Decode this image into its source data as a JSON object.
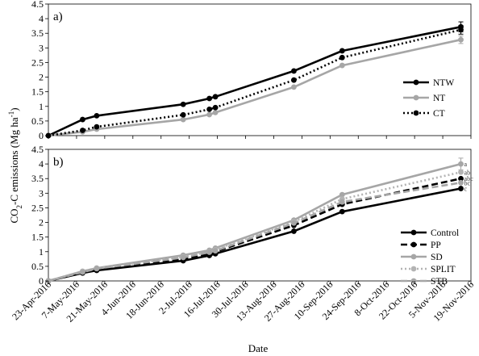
{
  "figure": {
    "ylabel_main": "CO",
    "ylabel_sub": "2",
    "ylabel_rest": "-C emissions (Mg ha",
    "ylabel_sup": "-1",
    "ylabel_close": ")",
    "xlabel": "Date"
  },
  "chart_data": [
    {
      "type": "line",
      "panel_label": "a)",
      "x_tick_labels": [
        "23-Apr-2016",
        "7-May-2016",
        "21-May-2016",
        "4-Jun-2016",
        "18-Jun-2016",
        "2-Jul-2016",
        "16-Jul-2016",
        "30-Jul-2016",
        "13-Aug-2016",
        "27-Aug-2016",
        "10-Sep-2016",
        "24-Sep-2016",
        "8-Oct-2016",
        "22-Oct-2016",
        "5-Nov-2016",
        "19-Nov-2016"
      ],
      "y_ticks": [
        "0",
        "0.5",
        "1",
        "1.5",
        "2",
        "2.5",
        "3",
        "3.5",
        "4",
        "4.5"
      ],
      "ylim": [
        0,
        4.5
      ],
      "x_domain": [
        "2016-04-23",
        "2016-11-19"
      ],
      "legend": "right",
      "series": [
        {
          "name": "NTW",
          "color": "#000000",
          "style": "solid",
          "marker": "#000000",
          "x": [
            "2016-04-23",
            "2016-05-10",
            "2016-05-17",
            "2016-06-29",
            "2016-07-12",
            "2016-07-15",
            "2016-08-23",
            "2016-09-16",
            "2016-11-14"
          ],
          "y": [
            0,
            0.55,
            0.68,
            1.07,
            1.27,
            1.33,
            2.21,
            2.9,
            3.72
          ],
          "err": [
            0,
            0,
            0,
            0,
            0,
            0,
            0,
            0,
            0.17
          ]
        },
        {
          "name": "NT",
          "color": "#a6a6a6",
          "style": "solid",
          "marker": "#a6a6a6",
          "x": [
            "2016-04-23",
            "2016-05-10",
            "2016-05-17",
            "2016-06-29",
            "2016-07-12",
            "2016-07-15",
            "2016-08-23",
            "2016-09-16",
            "2016-11-14"
          ],
          "y": [
            0,
            0.13,
            0.22,
            0.55,
            0.72,
            0.79,
            1.66,
            2.4,
            3.28
          ],
          "err": [
            0,
            0,
            0,
            0,
            0,
            0,
            0,
            0,
            0.13
          ]
        },
        {
          "name": "CT",
          "color": "#000000",
          "style": "dotted",
          "marker": "#000000",
          "x": [
            "2016-04-23",
            "2016-05-10",
            "2016-05-17",
            "2016-06-29",
            "2016-07-12",
            "2016-07-15",
            "2016-08-23",
            "2016-09-16",
            "2016-11-14"
          ],
          "y": [
            0,
            0.18,
            0.3,
            0.71,
            0.9,
            0.96,
            1.9,
            2.67,
            3.62
          ],
          "err": [
            0,
            0,
            0,
            0,
            0,
            0,
            0,
            0,
            0.15
          ]
        }
      ]
    },
    {
      "type": "line",
      "panel_label": "b)",
      "x_tick_labels": [
        "23-Apr-2016",
        "7-May-2016",
        "21-May-2016",
        "4-Jun-2016",
        "18-Jun-2016",
        "2-Jul-2016",
        "16-Jul-2016",
        "30-Jul-2016",
        "13-Aug-2016",
        "27-Aug-2016",
        "10-Sep-2016",
        "24-Sep-2016",
        "8-Oct-2016",
        "22-Oct-2016",
        "5-Nov-2016",
        "19-Nov-2016"
      ],
      "y_ticks": [
        "0",
        "0.5",
        "1",
        "1.5",
        "2",
        "2.5",
        "3",
        "3.5",
        "4",
        "4.5"
      ],
      "ylim": [
        0,
        4.5
      ],
      "x_domain": [
        "2016-04-23",
        "2016-11-19"
      ],
      "legend": "right",
      "series": [
        {
          "name": "Control",
          "color": "#000000",
          "style": "solid",
          "marker": "#000000",
          "sig": "c",
          "x": [
            "2016-04-23",
            "2016-05-10",
            "2016-05-17",
            "2016-06-29",
            "2016-07-12",
            "2016-07-15",
            "2016-08-23",
            "2016-09-16",
            "2016-11-14"
          ],
          "y": [
            0,
            0.27,
            0.36,
            0.69,
            0.87,
            0.93,
            1.7,
            2.37,
            3.16
          ],
          "err": [
            0,
            0,
            0,
            0,
            0,
            0,
            0,
            0,
            0
          ]
        },
        {
          "name": "PP",
          "color": "#000000",
          "style": "dashed",
          "marker": "#000000",
          "sig": "abc",
          "x": [
            "2016-04-23",
            "2016-05-10",
            "2016-05-17",
            "2016-06-29",
            "2016-07-12",
            "2016-07-15",
            "2016-08-23",
            "2016-09-16",
            "2016-11-14"
          ],
          "y": [
            0,
            0.3,
            0.4,
            0.75,
            0.93,
            1.0,
            1.9,
            2.62,
            3.5
          ],
          "err": [
            0,
            0,
            0,
            0,
            0,
            0,
            0,
            0,
            0
          ]
        },
        {
          "name": "SD",
          "color": "#a6a6a6",
          "style": "solid",
          "marker": "#a6a6a6",
          "sig": "a",
          "x": [
            "2016-04-23",
            "2016-05-10",
            "2016-05-17",
            "2016-06-29",
            "2016-07-12",
            "2016-07-15",
            "2016-08-23",
            "2016-09-16",
            "2016-11-14"
          ],
          "y": [
            0,
            0.33,
            0.44,
            0.88,
            1.05,
            1.12,
            2.08,
            2.95,
            4.0
          ],
          "err": [
            0,
            0,
            0,
            0,
            0,
            0,
            0,
            0,
            0.2
          ]
        },
        {
          "name": "SPLIT",
          "color": "#b3b3b3",
          "style": "dotted",
          "marker": "#b3b3b3",
          "sig": "ab",
          "x": [
            "2016-04-23",
            "2016-05-10",
            "2016-05-17",
            "2016-06-29",
            "2016-07-12",
            "2016-07-15",
            "2016-08-23",
            "2016-09-16",
            "2016-11-14"
          ],
          "y": [
            0,
            0.32,
            0.43,
            0.82,
            1.0,
            1.07,
            2.02,
            2.8,
            3.72
          ],
          "err": [
            0,
            0,
            0,
            0,
            0,
            0,
            0,
            0,
            0
          ]
        },
        {
          "name": "STB",
          "color": "#a6a6a6",
          "style": "dashed",
          "marker": "#a6a6a6",
          "sig": "bc",
          "x": [
            "2016-04-23",
            "2016-05-10",
            "2016-05-17",
            "2016-06-29",
            "2016-07-12",
            "2016-07-15",
            "2016-08-23",
            "2016-09-16",
            "2016-11-14"
          ],
          "y": [
            0,
            0.3,
            0.42,
            0.8,
            0.98,
            1.03,
            1.98,
            2.7,
            3.36
          ],
          "err": [
            0,
            0,
            0,
            0,
            0,
            0,
            0,
            0,
            0
          ]
        }
      ]
    }
  ]
}
